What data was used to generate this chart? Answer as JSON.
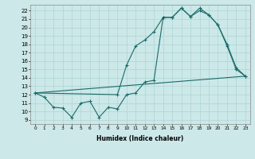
{
  "xlabel": "Humidex (Indice chaleur)",
  "bg_color": "#cce8e8",
  "grid_color": "#b0d4d4",
  "line_color": "#1a6b6b",
  "xlim": [
    -0.5,
    23.5
  ],
  "ylim": [
    8.5,
    22.7
  ],
  "xticks": [
    0,
    1,
    2,
    3,
    4,
    5,
    6,
    7,
    8,
    9,
    10,
    11,
    12,
    13,
    14,
    15,
    16,
    17,
    18,
    19,
    20,
    21,
    22,
    23
  ],
  "yticks": [
    9,
    10,
    11,
    12,
    13,
    14,
    15,
    16,
    17,
    18,
    19,
    20,
    21,
    22
  ],
  "line1_x": [
    0,
    1,
    2,
    3,
    4,
    5,
    6,
    7,
    8,
    9,
    10,
    11,
    12,
    13,
    14,
    15,
    16,
    17,
    18,
    19,
    20,
    21,
    22,
    23
  ],
  "line1_y": [
    12.2,
    11.7,
    10.5,
    10.4,
    9.3,
    11.0,
    11.2,
    9.3,
    10.5,
    10.3,
    12.0,
    12.2,
    13.5,
    13.7,
    21.2,
    21.2,
    22.3,
    21.3,
    22.3,
    21.5,
    20.3,
    18.0,
    15.2,
    14.2
  ],
  "line2_x": [
    0,
    9,
    10,
    11,
    12,
    13,
    14,
    15,
    16,
    17,
    18,
    19,
    20,
    21,
    22,
    23
  ],
  "line2_y": [
    12.2,
    12.0,
    15.5,
    17.8,
    18.5,
    19.5,
    21.2,
    21.2,
    22.3,
    21.3,
    22.0,
    21.5,
    20.3,
    17.8,
    15.0,
    14.2
  ],
  "line3_x": [
    0,
    23
  ],
  "line3_y": [
    12.2,
    14.2
  ]
}
